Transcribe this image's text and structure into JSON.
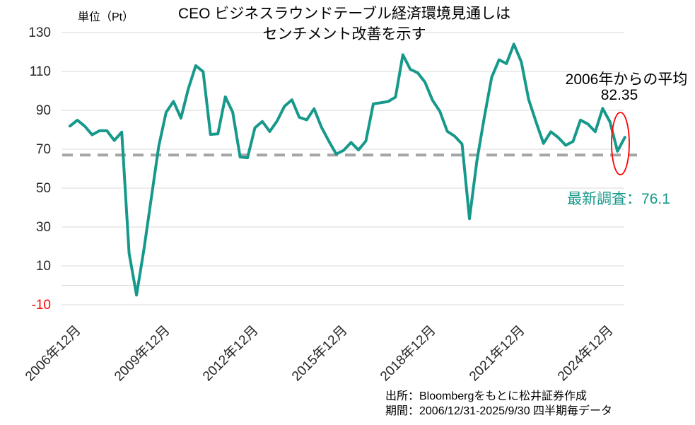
{
  "title": {
    "line1": "CEO  ビジネスラウンドテーブル経済環境見通しは",
    "line2": "センチメント改善を示す"
  },
  "unit_label": "単位（Pt）",
  "annotations": {
    "average_label": "2006年からの平均",
    "average_value": "82.35",
    "latest_label": "最新調査：76.1"
  },
  "source": {
    "line1": "出所：Bloombergをもとに松井証券作成",
    "line2": "期間：2006/12/31-2025/9/30  四半期毎データ"
  },
  "colors": {
    "line": "#16998a",
    "latest_text": "#16998a",
    "grid": "#d9d9d9",
    "dashed": "#a6a6a6",
    "highlight": "#ff0000",
    "negative_tick": "#ff0000",
    "tick_text": "#262626"
  },
  "chart_data": {
    "type": "line",
    "title": "CEO ビジネスラウンドテーブル経済環境見通しはセンチメント改善を示す",
    "ylabel": "単位（Pt）",
    "ylim": [
      -10,
      130
    ],
    "grid": true,
    "y_ticks": [
      130,
      110,
      90,
      70,
      50,
      30,
      10,
      -10
    ],
    "x_tick_labels": [
      "2006年12月",
      "2009年12月",
      "2012年12月",
      "2015年12月",
      "2018年12月",
      "2021年12月",
      "2024年12月"
    ],
    "x_tick_every": 12,
    "dashed_line_value": 67,
    "average_from_2006": 82.35,
    "latest_value": 76.1,
    "x": [
      "2006Q4",
      "2007Q1",
      "2007Q2",
      "2007Q3",
      "2007Q4",
      "2008Q1",
      "2008Q2",
      "2008Q3",
      "2008Q4",
      "2009Q1",
      "2009Q2",
      "2009Q3",
      "2009Q4",
      "2010Q1",
      "2010Q2",
      "2010Q3",
      "2010Q4",
      "2011Q1",
      "2011Q2",
      "2011Q3",
      "2011Q4",
      "2012Q1",
      "2012Q2",
      "2012Q3",
      "2012Q4",
      "2013Q1",
      "2013Q2",
      "2013Q3",
      "2013Q4",
      "2014Q1",
      "2014Q2",
      "2014Q3",
      "2014Q4",
      "2015Q1",
      "2015Q2",
      "2015Q3",
      "2015Q4",
      "2016Q1",
      "2016Q2",
      "2016Q3",
      "2016Q4",
      "2017Q1",
      "2017Q2",
      "2017Q3",
      "2017Q4",
      "2018Q1",
      "2018Q2",
      "2018Q3",
      "2018Q4",
      "2019Q1",
      "2019Q2",
      "2019Q3",
      "2019Q4",
      "2020Q1",
      "2020Q2",
      "2020Q3",
      "2020Q4",
      "2021Q1",
      "2021Q2",
      "2021Q3",
      "2021Q4",
      "2022Q1",
      "2022Q2",
      "2022Q3",
      "2022Q4",
      "2023Q1",
      "2023Q2",
      "2023Q3",
      "2023Q4",
      "2024Q1",
      "2024Q2",
      "2024Q3",
      "2024Q4",
      "2025Q1",
      "2025Q2",
      "2025Q3"
    ],
    "values": [
      81.9,
      84.9,
      81.9,
      77.4,
      79.5,
      79.5,
      74.5,
      78.8,
      16.5,
      -5.0,
      18.5,
      44.9,
      71.5,
      88.9,
      94.6,
      86.0,
      101.0,
      113.0,
      109.9,
      77.6,
      77.9,
      96.9,
      89.1,
      66.0,
      65.6,
      81.0,
      84.3,
      79.1,
      84.5,
      92.1,
      95.4,
      86.4,
      85.1,
      90.8,
      81.3,
      74.1,
      67.5,
      69.4,
      73.5,
      69.6,
      74.2,
      93.3,
      93.9,
      94.5,
      96.8,
      118.6,
      111.1,
      109.3,
      104.4,
      95.2,
      89.5,
      79.2,
      76.7,
      72.7,
      34.3,
      64.0,
      86.2,
      107.0,
      116.0,
      114.0,
      124.0,
      115.0,
      95.6,
      84.0,
      73.0,
      79.0,
      76.0,
      72.0,
      74.0,
      85.0,
      83.0,
      79.0,
      91.0,
      84.0,
      69.0,
      76.1
    ]
  }
}
